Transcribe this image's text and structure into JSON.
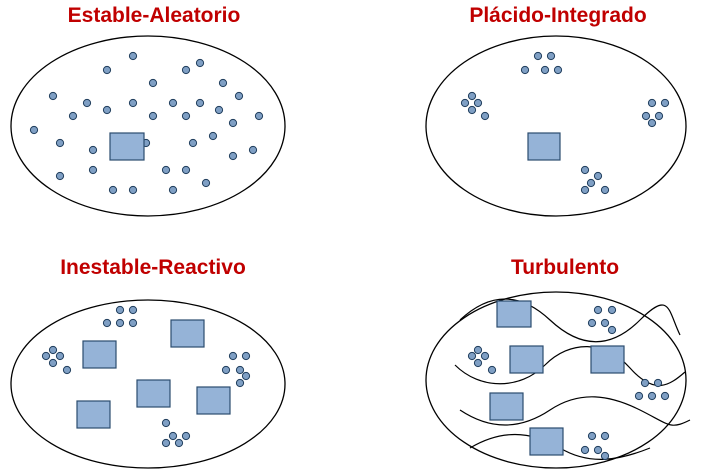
{
  "panels": [
    {
      "id": "estable-aleatorio",
      "title": "Estable-Aleatorio"
    },
    {
      "id": "placido-integrado",
      "title": "Plácido-Integrado"
    },
    {
      "id": "inestable-reactivo",
      "title": "Inestable-Reactivo"
    },
    {
      "id": "turbulento",
      "title": "Turbulento"
    }
  ],
  "colors": {
    "title": "#c00000",
    "dot_fill": "#7f9fc4",
    "box_fill": "#95b3d7",
    "outline": "#000000"
  }
}
